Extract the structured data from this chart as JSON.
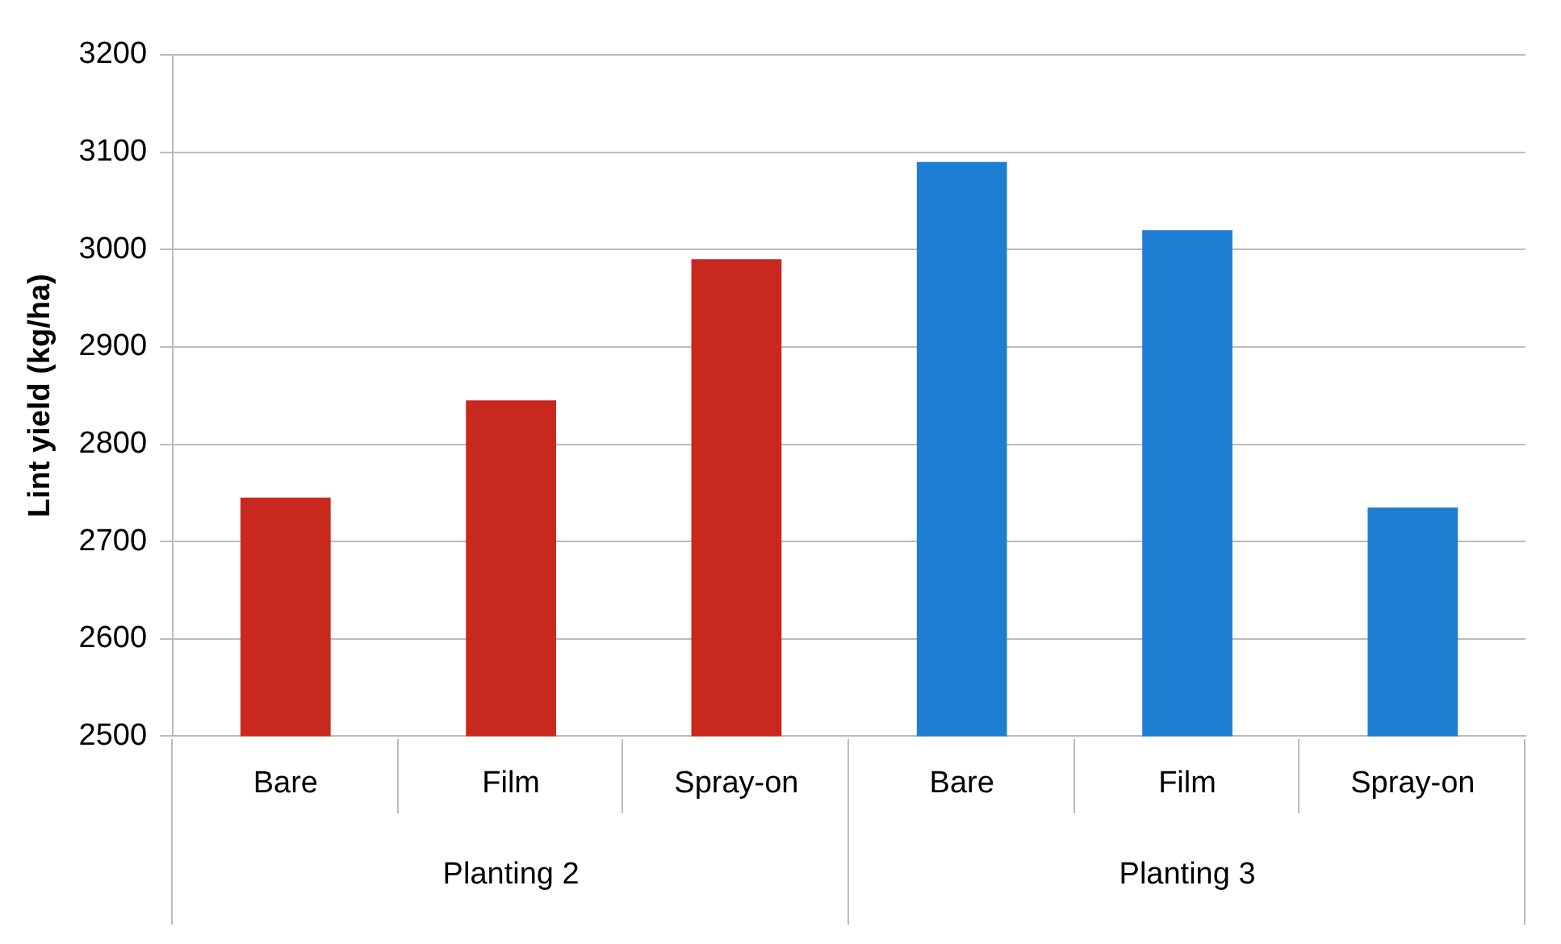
{
  "chart_data": {
    "type": "bar",
    "ylabel": "Lint yield (kg/ha)",
    "categories": [
      "Bare",
      "Film",
      "Spray-on",
      "Bare",
      "Film",
      "Spray-on"
    ],
    "values": [
      2745,
      2845,
      2990,
      3090,
      3020,
      2735
    ],
    "colors": [
      "#c8281e",
      "#c8281e",
      "#c8281e",
      "#1e7fd2",
      "#1e7fd2",
      "#1e7fd2"
    ],
    "ylim": [
      2500,
      3200
    ],
    "yticks": [
      2500,
      2600,
      2700,
      2800,
      2900,
      3000,
      3100,
      3200
    ],
    "grid": "y",
    "annotations": [
      "Planting 2",
      "Planting 3"
    ]
  }
}
